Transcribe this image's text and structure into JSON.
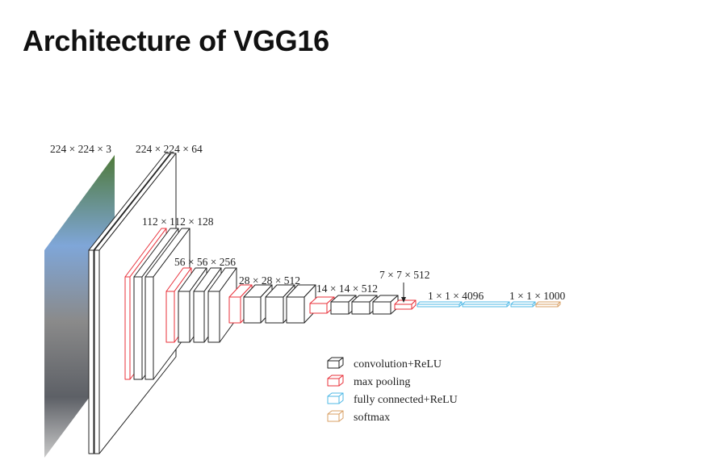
{
  "title": "Architecture of VGG16",
  "colors": {
    "conv": "#222222",
    "pool": "#e8303a",
    "fc": "#4fb8e6",
    "softmax": "#d9a066"
  },
  "labels": {
    "input": "224 × 224 × 3",
    "conv1": "224 × 224 × 64",
    "conv2": "112 × 112 × 128",
    "conv3": "56 × 56 × 256",
    "conv4": "28 × 28 × 512",
    "conv5": "14 × 14 × 512",
    "pool5": "7 × 7 × 512",
    "fc": "1 × 1 × 4096",
    "output": "1 × 1 × 1000"
  },
  "legend": [
    {
      "type": "conv",
      "label": "convolution+ReLU"
    },
    {
      "type": "pool",
      "label": "max pooling"
    },
    {
      "type": "fc",
      "label": "fully connected+ReLU"
    },
    {
      "type": "softmax",
      "label": "softmax"
    }
  ]
}
